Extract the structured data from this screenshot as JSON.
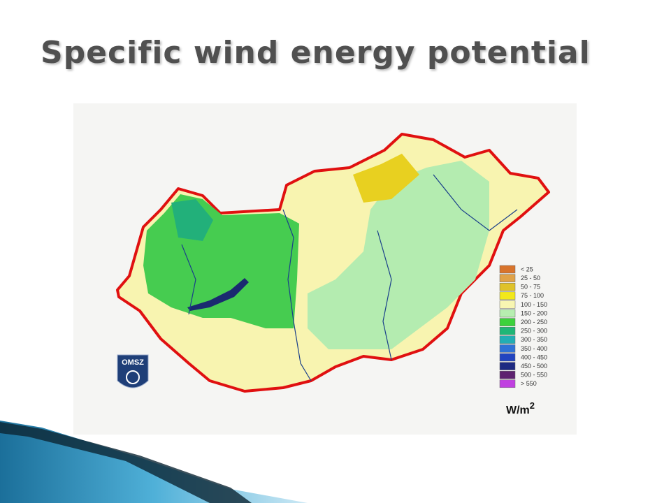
{
  "title": "Specific wind energy potential",
  "map": {
    "logo": "OMSZ",
    "legend": {
      "items": [
        {
          "label": "< 25",
          "color": "#d8742c"
        },
        {
          "label": "25 -  50",
          "color": "#e0a248"
        },
        {
          "label": "50 -  75",
          "color": "#dfc22a"
        },
        {
          "label": "75 - 100",
          "color": "#f2e81a"
        },
        {
          "label": "100 - 150",
          "color": "#f8f6b2"
        },
        {
          "label": "150 - 200",
          "color": "#b6eeb0"
        },
        {
          "label": "200 - 250",
          "color": "#3cd23c"
        },
        {
          "label": "250 - 300",
          "color": "#1fb676"
        },
        {
          "label": "300 - 350",
          "color": "#22aeb4"
        },
        {
          "label": "350 - 400",
          "color": "#2f72d6"
        },
        {
          "label": "400 - 450",
          "color": "#2244c0"
        },
        {
          "label": "450 - 500",
          "color": "#1e2a82"
        },
        {
          "label": "500 - 550",
          "color": "#5e2270"
        },
        {
          "label": "> 550",
          "color": "#c040e0"
        }
      ],
      "unit": "W/m",
      "unit_exponent": "2"
    }
  }
}
